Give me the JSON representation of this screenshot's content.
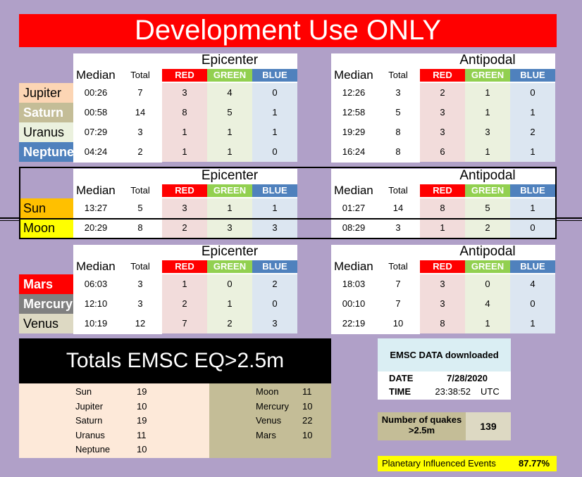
{
  "banner": "Development Use ONLY",
  "labels": {
    "epicenter": "Epicenter",
    "antipodal": "Antipodal",
    "median": "Median",
    "total": "Total",
    "red": "RED",
    "green": "GREEN",
    "blue": "BLUE"
  },
  "colors": {
    "red": "#ff0000",
    "green": "#92d050",
    "blue": "#4f81bd"
  },
  "sections": [
    {
      "rows": [
        {
          "planet": "Jupiter",
          "bg": "#fcd5b4",
          "fg": "#000000",
          "bold": false,
          "epi": [
            "00:26",
            "7",
            "3",
            "4",
            "0"
          ],
          "anti": [
            "12:26",
            "3",
            "2",
            "1",
            "0"
          ]
        },
        {
          "planet": "Saturn",
          "bg": "#c4bd97",
          "fg": "#ffffff",
          "bold": true,
          "epi": [
            "00:58",
            "14",
            "8",
            "5",
            "1"
          ],
          "anti": [
            "12:58",
            "5",
            "3",
            "1",
            "1"
          ]
        },
        {
          "planet": "Uranus",
          "bg": "#ebf1de",
          "fg": "#000000",
          "bold": false,
          "epi": [
            "07:29",
            "3",
            "1",
            "1",
            "1"
          ],
          "anti": [
            "19:29",
            "8",
            "3",
            "3",
            "2"
          ]
        },
        {
          "planet": "Neptune",
          "bg": "#4f81bd",
          "fg": "#ffffff",
          "bold": true,
          "epi": [
            "04:24",
            "2",
            "1",
            "1",
            "0"
          ],
          "anti": [
            "16:24",
            "8",
            "6",
            "1",
            "1"
          ]
        }
      ]
    },
    {
      "rows": [
        {
          "planet": "Sun",
          "bg": "#ffc000",
          "fg": "#000000",
          "bold": false,
          "epi": [
            "13:27",
            "5",
            "3",
            "1",
            "1"
          ],
          "anti": [
            "01:27",
            "14",
            "8",
            "5",
            "1"
          ]
        },
        {
          "planet": "Moon",
          "bg": "#ffff00",
          "fg": "#000000",
          "bold": false,
          "epi": [
            "20:29",
            "8",
            "2",
            "3",
            "3"
          ],
          "anti": [
            "08:29",
            "3",
            "1",
            "2",
            "0"
          ]
        }
      ]
    },
    {
      "rows": [
        {
          "planet": "Mars",
          "bg": "#ff0000",
          "fg": "#ffffff",
          "bold": true,
          "epi": [
            "06:03",
            "3",
            "1",
            "0",
            "2"
          ],
          "anti": [
            "18:03",
            "7",
            "3",
            "0",
            "4"
          ]
        },
        {
          "planet": "Mercury",
          "bg": "#808080",
          "fg": "#ffffff",
          "bold": true,
          "epi": [
            "12:10",
            "3",
            "2",
            "1",
            "0"
          ],
          "anti": [
            "00:10",
            "7",
            "3",
            "4",
            "0"
          ]
        },
        {
          "planet": "Venus",
          "bg": "#ddd9c3",
          "fg": "#000000",
          "bold": false,
          "epi": [
            "10:19",
            "12",
            "7",
            "2",
            "3"
          ],
          "anti": [
            "22:19",
            "10",
            "8",
            "1",
            "1"
          ]
        }
      ]
    }
  ],
  "totals": {
    "title": "Totals EMSC EQ>2.5m",
    "left": [
      {
        "name": "Sun",
        "value": "19"
      },
      {
        "name": "Jupiter",
        "value": "10"
      },
      {
        "name": "Saturn",
        "value": "19"
      },
      {
        "name": "Uranus",
        "value": "11"
      },
      {
        "name": "Neptune",
        "value": "10"
      }
    ],
    "right": [
      {
        "name": "Moon",
        "value": "11"
      },
      {
        "name": "Mercury",
        "value": "10"
      },
      {
        "name": "Venus",
        "value": "22"
      },
      {
        "name": "Mars",
        "value": "10"
      }
    ]
  },
  "emsc": {
    "title": "EMSC DATA downloaded",
    "date_label": "DATE",
    "date": "7/28/2020",
    "time_label": "TIME",
    "time": "23:38:52",
    "tz": "UTC"
  },
  "quakes": {
    "label_line1": "Number of quakes",
    "label_line2": ">2.5m",
    "value": "139"
  },
  "planetary": {
    "label": "Planetary Influenced Events",
    "value": "87.77%"
  }
}
